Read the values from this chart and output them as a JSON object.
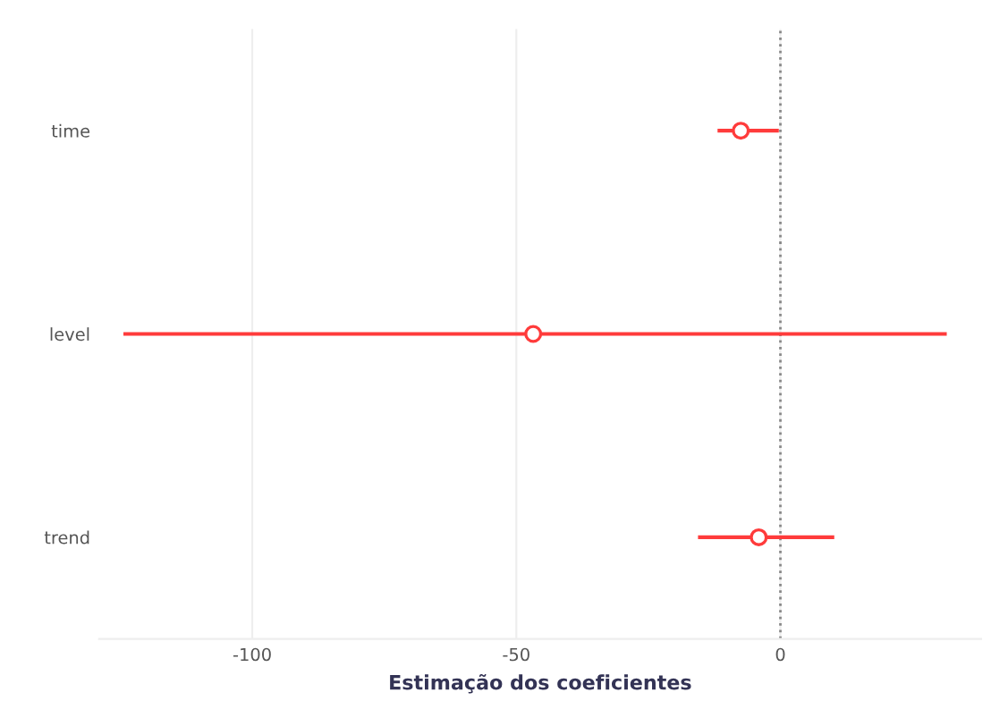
{
  "chart_data": {
    "type": "scatter",
    "orientation": "horizontal",
    "xlabel": "Estimação dos coeficientes",
    "categories": [
      "time",
      "level",
      "trend"
    ],
    "values": [
      -7.5,
      -46.8,
      -4.1
    ],
    "errors": [
      [
        -11.9,
        -0.3
      ],
      [
        -124.4,
        31.5
      ],
      [
        -15.6,
        10.2
      ]
    ],
    "color": "#ff3b3b",
    "marker": "circle",
    "xlim": [
      -129,
      38
    ],
    "xticks": [
      -100,
      -50,
      0
    ],
    "grid": "x",
    "ref_lines": [
      {
        "axis": "x",
        "value": 0,
        "line_style": "dotted",
        "color": "#888888"
      }
    ]
  }
}
